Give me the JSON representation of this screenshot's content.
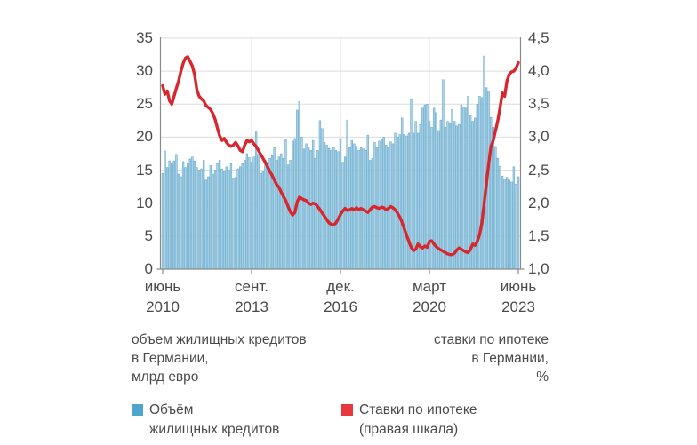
{
  "notes": {
    "left": [
      "объем жилищных кредитов",
      "в Германии,",
      "млрд евро"
    ],
    "right": [
      "ставки по ипотеке",
      "в Германии,",
      "%"
    ]
  },
  "legend": {
    "items": [
      {
        "label_lines": [
          "Объём",
          "жилищных кредитов"
        ],
        "color": "#4fa5ce"
      },
      {
        "label_lines": [
          "Ставки по ипотеке",
          "(правая шкала)"
        ],
        "color": "#e8383f"
      }
    ]
  },
  "chart_data": {
    "type": "bar+line",
    "grid": true,
    "x": {
      "start": "2010-06",
      "end": "2023-06",
      "freq": "monthly",
      "tick_labels": [
        [
          "июнь",
          "2010"
        ],
        [
          "сент.",
          "2013"
        ],
        [
          "дек.",
          "2016"
        ],
        [
          "март",
          "2020"
        ],
        [
          "июнь",
          "2023"
        ]
      ]
    },
    "left_axis": {
      "label": "объем жилищных кредитов в Германии, млрд евро",
      "range": [
        0,
        35
      ],
      "tick_labels": [
        "35",
        "30",
        "25",
        "20",
        "15",
        "10",
        "5",
        "0"
      ]
    },
    "right_axis": {
      "label": "ставки по ипотеке в Германии, %",
      "range": [
        1.0,
        4.5
      ],
      "tick_labels": [
        "4,5",
        "4,0",
        "3,5",
        "3,0",
        "2,5",
        "2,0",
        "1,5",
        "1,0"
      ]
    },
    "style": {
      "bar_fill": "#aed2e5",
      "bar_stroke": "#5ea7cc",
      "line": "#d8262d",
      "grid": "#dcdcdc",
      "axis": "#8a8a8a"
    },
    "series": [
      {
        "name": "Объём жилищных кредитов",
        "type": "bar",
        "axis": "left",
        "unit": "млрд евро",
        "values": [
          14.5,
          17.9,
          15.4,
          16.4,
          16.0,
          16.4,
          17.4,
          14.4,
          14.0,
          16.3,
          15.4,
          16.0,
          16.7,
          17.0,
          16.4,
          15.4,
          15.0,
          15.2,
          16.5,
          13.5,
          14.0,
          15.7,
          14.4,
          15.0,
          16.0,
          16.5,
          15.2,
          14.8,
          15.5,
          15.0,
          16.0,
          13.8,
          13.9,
          15.2,
          15.5,
          16.0,
          16.5,
          17.5,
          16.9,
          16.2,
          17.0,
          20.8,
          17.4,
          14.5,
          14.8,
          16.5,
          16.2,
          16.8,
          17.2,
          18.4,
          16.5,
          17.0,
          17.5,
          16.8,
          19.6,
          15.8,
          16.5,
          19.4,
          19.8,
          24.1,
          25.4,
          20.0,
          18.2,
          19.0,
          18.5,
          18.0,
          19.5,
          16.8,
          18.0,
          22.5,
          21.3,
          19.2,
          18.8,
          18.3,
          18.0,
          18.5,
          18.0,
          17.8,
          19.8,
          16.2,
          17.0,
          22.6,
          18.4,
          19.5,
          19.0,
          18.6,
          18.0,
          18.4,
          18.2,
          18.0,
          20.3,
          16.5,
          16.8,
          19.2,
          18.5,
          19.4,
          19.6,
          20.0,
          18.8,
          18.5,
          19.3,
          19.0,
          20.6,
          20.0,
          20.4,
          22.9,
          20.4,
          20.2,
          20.6,
          25.7,
          20.6,
          22.4,
          20.6,
          21.9,
          24.4,
          24.9,
          25.0,
          22.4,
          21.5,
          24.4,
          23.7,
          21.0,
          22.6,
          28.7,
          21.5,
          22.4,
          22.2,
          24.2,
          22.4,
          21.7,
          21.9,
          24.9,
          24.6,
          24.4,
          26.2,
          23.3,
          22.4,
          22.9,
          25.0,
          26.2,
          26.0,
          32.3,
          27.5,
          27.0,
          23.0,
          21.5,
          18.6,
          16.8,
          15.6,
          14.1,
          13.6,
          13.9,
          13.5,
          13.2,
          15.5,
          12.9,
          14.0
        ]
      },
      {
        "name": "Ставки по ипотеке (правая шкала)",
        "type": "line",
        "axis": "right",
        "unit": "%",
        "values": [
          3.78,
          3.65,
          3.7,
          3.55,
          3.5,
          3.62,
          3.74,
          3.85,
          4.0,
          4.12,
          4.2,
          4.22,
          4.15,
          4.08,
          3.95,
          3.72,
          3.62,
          3.58,
          3.55,
          3.48,
          3.45,
          3.42,
          3.36,
          3.27,
          3.14,
          3.02,
          2.95,
          2.98,
          2.92,
          2.88,
          2.86,
          2.88,
          2.92,
          2.87,
          2.8,
          2.78,
          2.88,
          2.95,
          2.93,
          2.95,
          2.9,
          2.86,
          2.8,
          2.74,
          2.68,
          2.62,
          2.55,
          2.48,
          2.42,
          2.35,
          2.28,
          2.24,
          2.17,
          2.1,
          2.04,
          1.95,
          1.87,
          1.82,
          1.86,
          2.02,
          2.09,
          2.07,
          2.05,
          2.04,
          2.0,
          1.98,
          2.0,
          1.99,
          1.95,
          1.9,
          1.85,
          1.8,
          1.75,
          1.7,
          1.68,
          1.67,
          1.7,
          1.76,
          1.83,
          1.88,
          1.92,
          1.89,
          1.9,
          1.92,
          1.9,
          1.93,
          1.9,
          1.92,
          1.9,
          1.88,
          1.86,
          1.9,
          1.94,
          1.95,
          1.93,
          1.92,
          1.94,
          1.93,
          1.9,
          1.92,
          1.95,
          1.93,
          1.9,
          1.85,
          1.79,
          1.71,
          1.61,
          1.51,
          1.42,
          1.33,
          1.28,
          1.3,
          1.38,
          1.34,
          1.32,
          1.35,
          1.33,
          1.42,
          1.43,
          1.38,
          1.34,
          1.31,
          1.29,
          1.27,
          1.25,
          1.23,
          1.22,
          1.22,
          1.24,
          1.29,
          1.32,
          1.3,
          1.28,
          1.26,
          1.25,
          1.3,
          1.38,
          1.36,
          1.42,
          1.52,
          1.7,
          2.0,
          2.3,
          2.6,
          2.86,
          2.95,
          3.1,
          3.25,
          3.45,
          3.67,
          3.62,
          3.85,
          3.95,
          3.99,
          4.0,
          4.05,
          4.13
        ]
      }
    ]
  }
}
